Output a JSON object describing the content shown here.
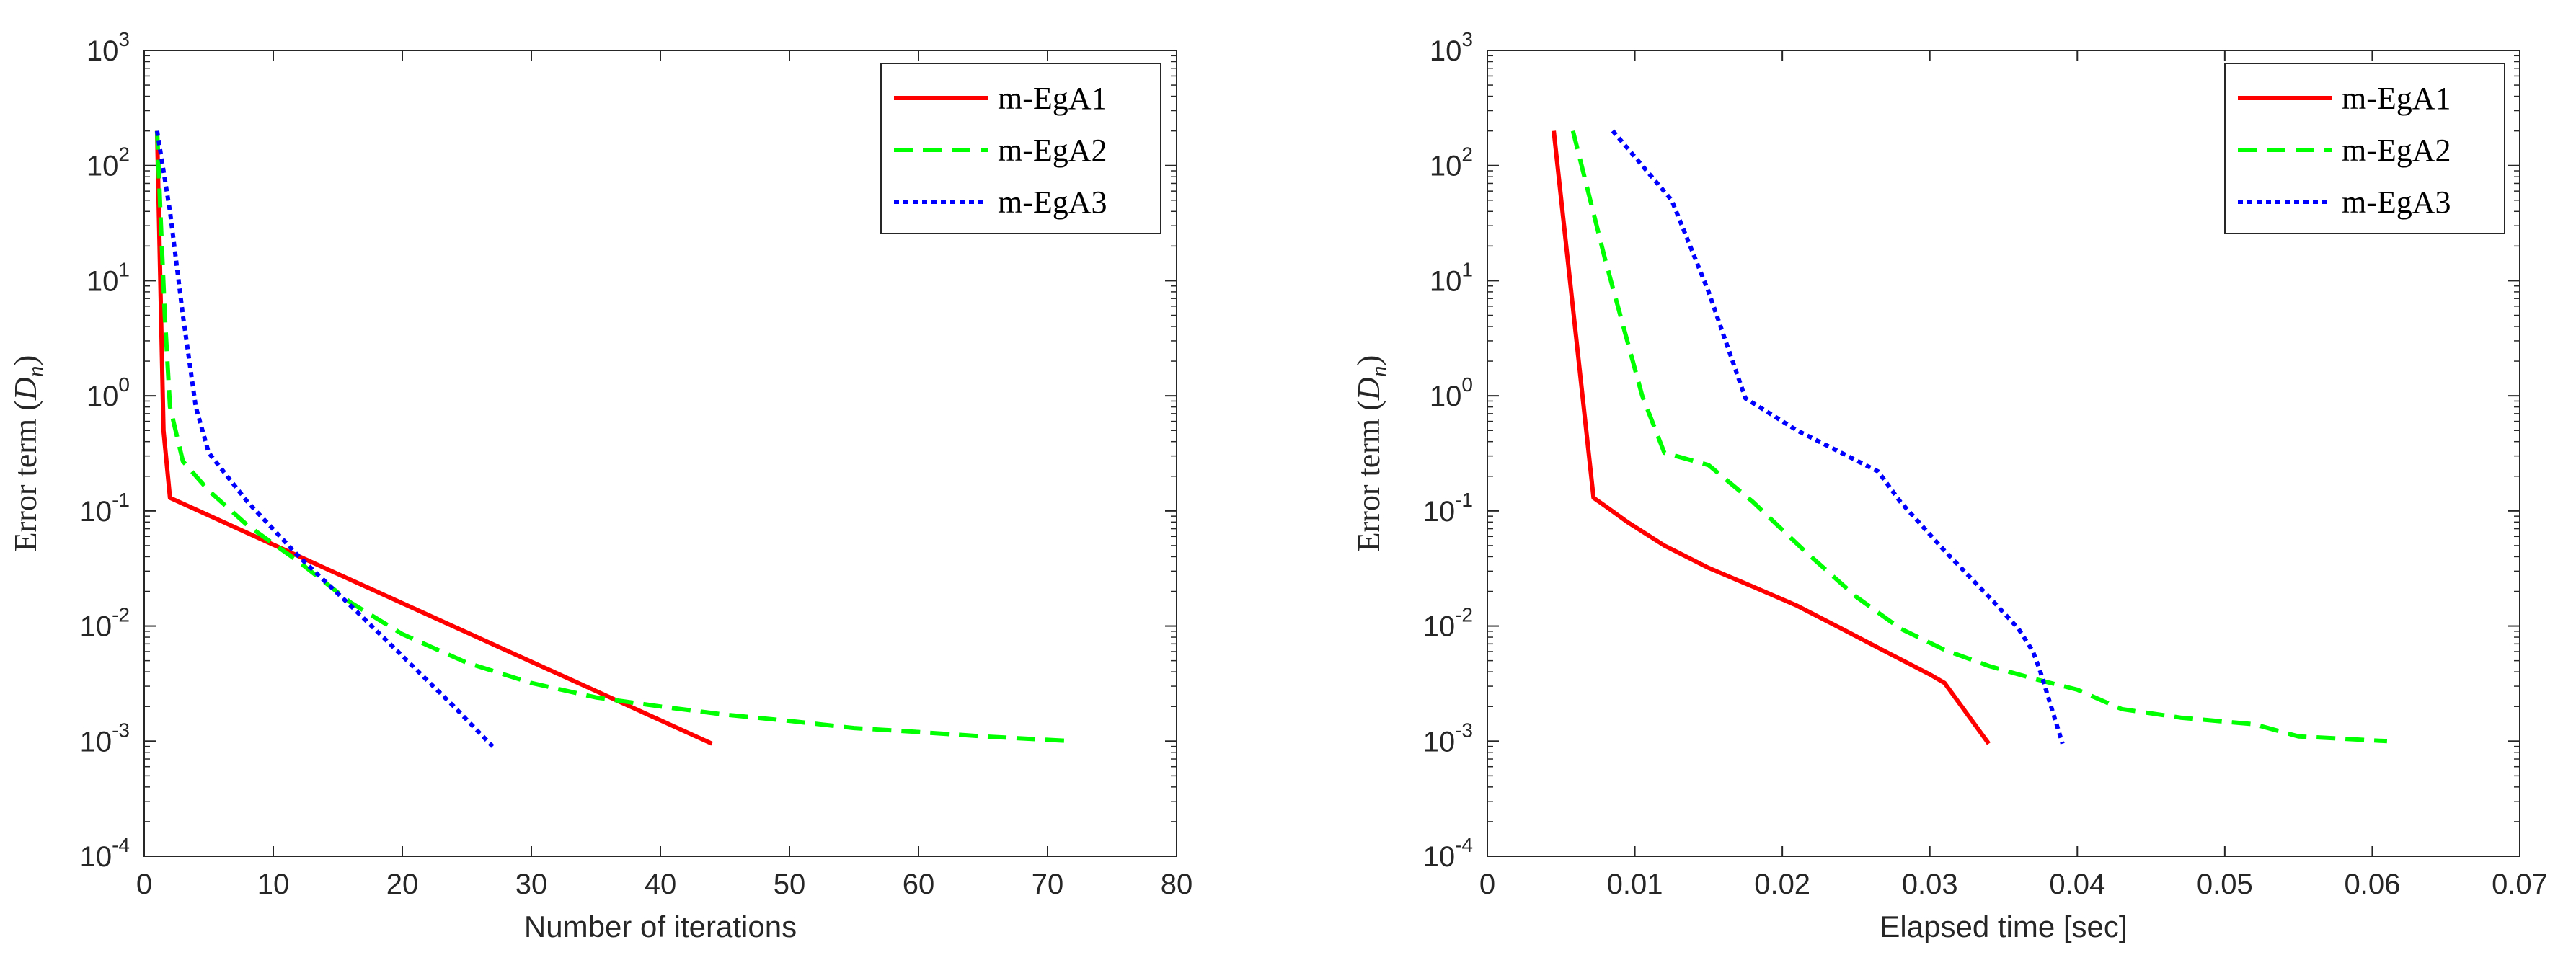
{
  "chart_data": [
    {
      "type": "line",
      "title": "",
      "xlabel": "Number of iterations",
      "ylabel_prefix": "Error term (",
      "ylabel_var": "D",
      "ylabel_sub": "n",
      "ylabel_suffix": ")",
      "yscale": "log",
      "xlim": [
        0,
        80
      ],
      "ylim_exp": [
        -4,
        3
      ],
      "xticks": [
        0,
        10,
        20,
        30,
        40,
        50,
        60,
        70,
        80
      ],
      "yticks_exp": [
        -4,
        -3,
        -2,
        -1,
        0,
        1,
        2,
        3
      ],
      "legend_position": "top-right",
      "series": [
        {
          "name": "m-EgA1",
          "color": "#ff0000",
          "style": "solid",
          "x": [
            1,
            1.5,
            2,
            44
          ],
          "y": [
            200,
            0.5,
            0.13,
            0.00095
          ]
        },
        {
          "name": "m-EgA2",
          "color": "#00ff00",
          "style": "dashed",
          "x": [
            1,
            1.3,
            1.6,
            2,
            3,
            5,
            8,
            12,
            16,
            20,
            25,
            30,
            35,
            40,
            45,
            50,
            55,
            60,
            65,
            72
          ],
          "y": [
            200,
            30,
            5,
            0.8,
            0.27,
            0.15,
            0.075,
            0.036,
            0.016,
            0.0085,
            0.0048,
            0.0032,
            0.0024,
            0.002,
            0.0017,
            0.0015,
            0.0013,
            0.0012,
            0.0011,
            0.001
          ]
        },
        {
          "name": "m-EgA3",
          "color": "#0000ff",
          "style": "dotted",
          "x": [
            1,
            2,
            3,
            4,
            5,
            8,
            12,
            16,
            20,
            24,
            27
          ],
          "y": [
            200,
            40,
            5,
            0.8,
            0.32,
            0.12,
            0.04,
            0.015,
            0.0055,
            0.002,
            0.0009
          ]
        }
      ]
    },
    {
      "type": "line",
      "title": "",
      "xlabel": "Elapsed time [sec]",
      "ylabel_prefix": "Error term (",
      "ylabel_var": "D",
      "ylabel_sub": "n",
      "ylabel_suffix": ")",
      "yscale": "log",
      "xlim": [
        0,
        0.07
      ],
      "ylim_exp": [
        -4,
        3
      ],
      "xticks": [
        0,
        0.01,
        0.02,
        0.03,
        0.04,
        0.05,
        0.06,
        0.07
      ],
      "xtick_labels": [
        "0",
        "0.01",
        "0.02",
        "0.03",
        "0.04",
        "0.05",
        "0.06",
        "0.07"
      ],
      "yticks_exp": [
        -4,
        -3,
        -2,
        -1,
        0,
        1,
        2,
        3
      ],
      "legend_position": "top-right",
      "series": [
        {
          "name": "m-EgA1",
          "color": "#ff0000",
          "style": "solid",
          "x": [
            0.0045,
            0.0072,
            0.008,
            0.0095,
            0.012,
            0.015,
            0.018,
            0.021,
            0.024,
            0.027,
            0.03,
            0.031,
            0.034
          ],
          "y": [
            200,
            0.13,
            0.11,
            0.08,
            0.05,
            0.032,
            0.022,
            0.015,
            0.0095,
            0.006,
            0.0038,
            0.0032,
            0.00095
          ]
        },
        {
          "name": "m-EgA2",
          "color": "#00ff00",
          "style": "dashed",
          "x": [
            0.0058,
            0.008,
            0.0105,
            0.012,
            0.015,
            0.018,
            0.0215,
            0.025,
            0.028,
            0.031,
            0.034,
            0.037,
            0.04,
            0.043,
            0.047,
            0.052,
            0.055,
            0.058,
            0.061
          ],
          "y": [
            200,
            15,
            1.0,
            0.32,
            0.25,
            0.12,
            0.045,
            0.018,
            0.0095,
            0.0062,
            0.0045,
            0.0035,
            0.0028,
            0.0019,
            0.0016,
            0.0014,
            0.0011,
            0.00105,
            0.001
          ]
        },
        {
          "name": "m-EgA3",
          "color": "#0000ff",
          "style": "dotted",
          "x": [
            0.0085,
            0.0125,
            0.015,
            0.0175,
            0.021,
            0.0265,
            0.028,
            0.031,
            0.034,
            0.036,
            0.037,
            0.0375,
            0.039
          ],
          "y": [
            200,
            50,
            8,
            0.95,
            0.5,
            0.22,
            0.12,
            0.045,
            0.018,
            0.0095,
            0.006,
            0.004,
            0.00095
          ]
        }
      ]
    }
  ]
}
